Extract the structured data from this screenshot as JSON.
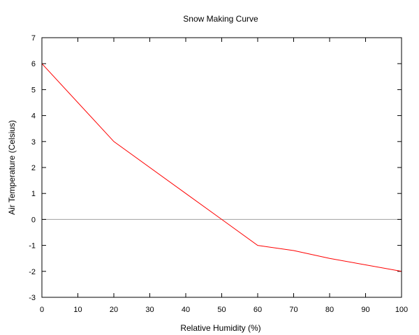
{
  "chart_data": {
    "type": "line",
    "title": "Snow Making Curve",
    "xlabel": "Relative Humidity (%)",
    "ylabel": "Air Temperature (Celsius)",
    "xlim": [
      0,
      100
    ],
    "ylim": [
      -3,
      7
    ],
    "x_ticks": [
      0,
      10,
      20,
      30,
      40,
      50,
      60,
      70,
      80,
      90,
      100
    ],
    "y_ticks": [
      -3,
      -2,
      -1,
      0,
      1,
      2,
      3,
      4,
      5,
      6,
      7
    ],
    "grid": false,
    "zero_line": {
      "y": 0,
      "color": "#a0a0a0"
    },
    "series": [
      {
        "color": "#ff0000",
        "x": [
          0,
          20,
          40,
          50,
          60,
          70,
          80,
          90,
          100
        ],
        "y": [
          6,
          3,
          1,
          0,
          -1,
          -1.2,
          -1.5,
          -1.75,
          -2
        ]
      }
    ]
  }
}
